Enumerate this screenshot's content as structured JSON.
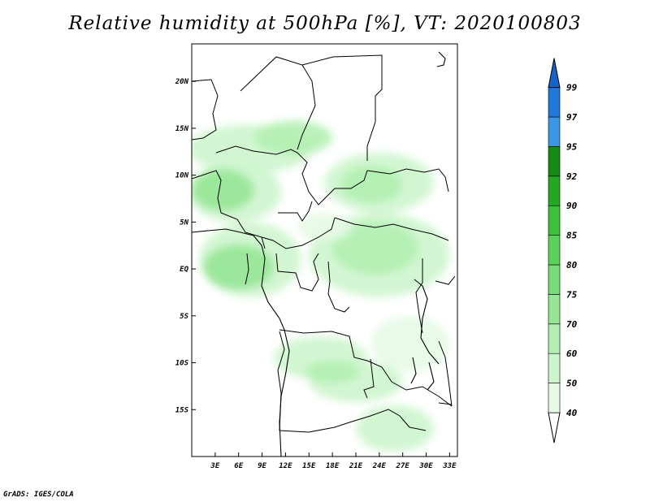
{
  "title": "Relative humidity at 500hPa [%], VT: 2020100803",
  "credit": "GrADS: IGES/COLA",
  "map": {
    "lat_range": [
      -20,
      24
    ],
    "lon_range": [
      0,
      34
    ],
    "lat_ticks": [
      {
        "value": 20,
        "label": "20N"
      },
      {
        "value": 15,
        "label": "15N"
      },
      {
        "value": 10,
        "label": "10N"
      },
      {
        "value": 5,
        "label": "5N"
      },
      {
        "value": 0,
        "label": "EQ"
      },
      {
        "value": -5,
        "label": "5S"
      },
      {
        "value": -10,
        "label": "10S"
      },
      {
        "value": -15,
        "label": "15S"
      }
    ],
    "lon_ticks": [
      {
        "value": 3,
        "label": "3E"
      },
      {
        "value": 6,
        "label": "6E"
      },
      {
        "value": 9,
        "label": "9E"
      },
      {
        "value": 12,
        "label": "12E"
      },
      {
        "value": 15,
        "label": "15E"
      },
      {
        "value": 18,
        "label": "18E"
      },
      {
        "value": 21,
        "label": "21E"
      },
      {
        "value": 24,
        "label": "24E"
      },
      {
        "value": 27,
        "label": "27E"
      },
      {
        "value": 30,
        "label": "30E"
      },
      {
        "value": 33,
        "label": "33E"
      }
    ]
  },
  "colorbar": {
    "levels": [
      "40",
      "50",
      "60",
      "70",
      "75",
      "80",
      "85",
      "90",
      "92",
      "95",
      "97",
      "99"
    ],
    "colors": [
      "#ffffff",
      "#e6fae6",
      "#cdf5cd",
      "#b2f0b2",
      "#96e696",
      "#78dc78",
      "#5ad25a",
      "#3cc13c",
      "#22a822",
      "#148c14",
      "#3c96e6",
      "#1f78dc",
      "#1464c8"
    ]
  },
  "humidity_areas": [
    {
      "level": 2,
      "lon": 7.5,
      "lat": 12.8,
      "rlon": 8.0,
      "rlat": 2.6
    },
    {
      "level": 3,
      "lon": 13,
      "lat": 14,
      "rlon": 5,
      "rlat": 1.8
    },
    {
      "level": 2,
      "lon": 24,
      "lat": 9.2,
      "rlon": 7,
      "rlat": 3.2
    },
    {
      "level": 3,
      "lon": 23,
      "lat": 9,
      "rlon": 4,
      "rlat": 2
    },
    {
      "level": 2,
      "lon": 5.5,
      "lat": 8.2,
      "rlon": 6,
      "rlat": 3.2
    },
    {
      "level": 4,
      "lon": 4,
      "lat": 8.4,
      "rlon": 4,
      "rlat": 2.2
    },
    {
      "level": 2,
      "lon": 7.5,
      "lat": 1,
      "rlon": 6.5,
      "rlat": 4
    },
    {
      "level": 4,
      "lon": 6,
      "lat": 0.2,
      "rlon": 4.5,
      "rlat": 2.4
    },
    {
      "level": 2,
      "lon": 24,
      "lat": 1.5,
      "rlon": 9,
      "rlat": 4.5
    },
    {
      "level": 3,
      "lon": 23.5,
      "lat": 2.2,
      "rlon": 5.5,
      "rlat": 2.8
    },
    {
      "level": 2,
      "lon": 16.5,
      "lat": -9.5,
      "rlon": 6,
      "rlat": 2.3
    },
    {
      "level": 2,
      "lon": 21,
      "lat": -12,
      "rlon": 6,
      "rlat": 2.2
    },
    {
      "level": 3,
      "lon": 18,
      "lat": -11,
      "rlon": 3.5,
      "rlat": 1.2
    },
    {
      "level": 2,
      "lon": 26,
      "lat": -17,
      "rlon": 5,
      "rlat": 2.5
    },
    {
      "level": 1,
      "lon": 28,
      "lat": -8,
      "rlon": 5,
      "rlat": 3
    },
    {
      "level": 1,
      "lon": 17,
      "lat": 4.5,
      "rlon": 3.5,
      "rlat": 1.5
    }
  ]
}
